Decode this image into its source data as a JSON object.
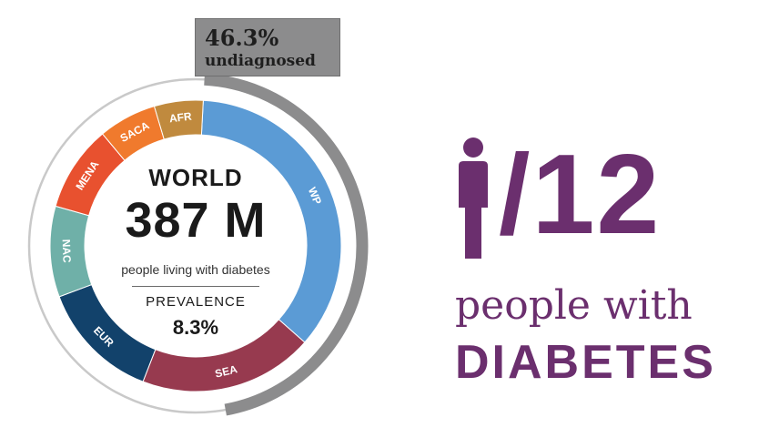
{
  "callout": {
    "percent": "46.3%",
    "label": "undiagnosed"
  },
  "center": {
    "region": "WORLD",
    "total": "387 M",
    "subtitle": "people living with diabetes",
    "prevalence_label": "PREVALENCE",
    "prevalence_value": "8.3%"
  },
  "infographic": {
    "ratio": "/12",
    "line1": "people with",
    "line2": "DIABETES",
    "accent_color": "#6b2f6e",
    "icon": "person-icon"
  },
  "chart_data": {
    "type": "pie",
    "variant": "donut",
    "title": "WORLD",
    "total_label": "387 M",
    "categories": [
      "WP",
      "SEA",
      "EUR",
      "NAC",
      "MENA",
      "SACA",
      "AFR"
    ],
    "values": [
      138.2,
      75.0,
      52.0,
      39.0,
      37.0,
      25.0,
      21.0
    ],
    "colors": [
      "#5b9bd5",
      "#973a4f",
      "#12426b",
      "#6fb0a8",
      "#e8512f",
      "#f07a2d",
      "#c08a3e"
    ],
    "outer_ring": {
      "label": "undiagnosed",
      "value": 46.3,
      "unit": "%",
      "color": "#8c8c8d"
    }
  }
}
